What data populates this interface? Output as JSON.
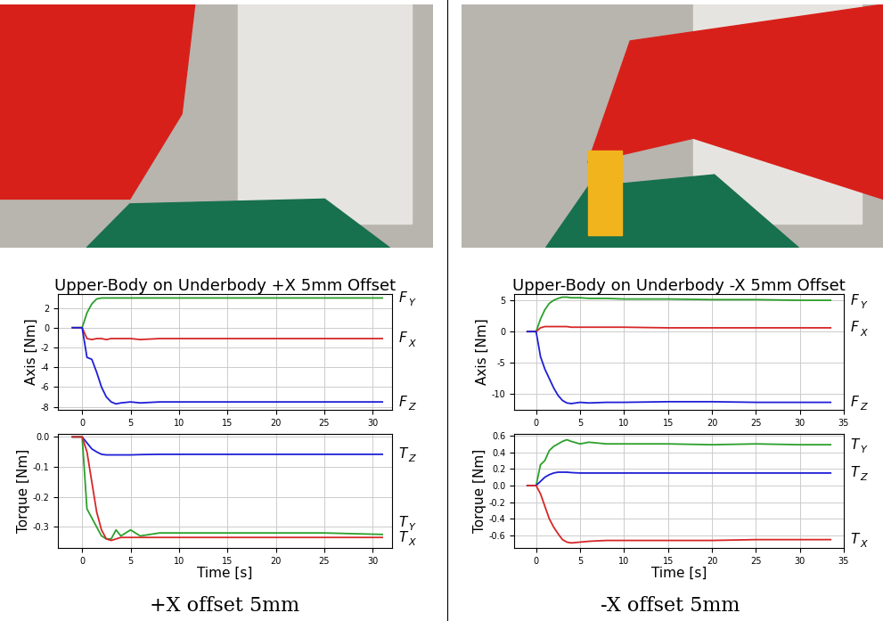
{
  "chart_data": [
    {
      "type": "line",
      "title": "Upper-Body on Underbody +X 5mm Offset",
      "y_label": "Axis [Nm]",
      "grid": true,
      "x": [
        -1,
        0,
        0.5,
        1,
        1.5,
        2,
        2.5,
        3,
        3.5,
        4,
        5,
        6,
        8,
        10,
        15,
        20,
        25,
        31
      ],
      "xlim": [
        -2.5,
        32
      ],
      "xticks": [
        0,
        5,
        10,
        15,
        20,
        25,
        30
      ],
      "ylim": [
        -8.3,
        3.4
      ],
      "yticks": [
        -8,
        -6,
        -4,
        -2,
        0,
        2
      ],
      "series": [
        {
          "name": "FY",
          "color": "#2ca02c",
          "values": [
            0,
            0,
            1.5,
            2.4,
            2.9,
            3.0,
            3.0,
            3.0,
            3.0,
            3.0,
            3.0,
            3.0,
            3.0,
            3.0,
            3.0,
            3.0,
            3.0,
            3.0
          ]
        },
        {
          "name": "FX",
          "color": "#d62728",
          "values": [
            0,
            0,
            -1.1,
            -1.2,
            -1.1,
            -1.1,
            -1.2,
            -1.1,
            -1.1,
            -1.1,
            -1.1,
            -1.2,
            -1.1,
            -1.1,
            -1.1,
            -1.1,
            -1.1,
            -1.1
          ]
        },
        {
          "name": "FZ",
          "color": "#1f1fd6",
          "values": [
            0,
            0,
            -3.0,
            -3.2,
            -4.5,
            -6.0,
            -7.0,
            -7.5,
            -7.7,
            -7.6,
            -7.5,
            -7.6,
            -7.5,
            -7.5,
            -7.5,
            -7.5,
            -7.5,
            -7.5
          ]
        }
      ]
    },
    {
      "type": "line",
      "x_label": "Time [s]",
      "y_label": "Torque [Nm]",
      "grid": true,
      "x": [
        -1,
        0,
        0.5,
        1,
        1.5,
        2,
        2.5,
        3,
        3.5,
        4,
        5,
        6,
        8,
        10,
        15,
        20,
        25,
        31
      ],
      "xlim": [
        -2.5,
        32
      ],
      "xticks": [
        0,
        5,
        10,
        15,
        20,
        25,
        30
      ],
      "ylim": [
        -0.37,
        0.01
      ],
      "yticks": [
        0.0,
        -0.1,
        -0.2,
        -0.3
      ],
      "series": [
        {
          "name": "TZ",
          "color": "#1f1fd6",
          "values": [
            0,
            0,
            -0.02,
            -0.04,
            -0.05,
            -0.058,
            -0.06,
            -0.06,
            -0.06,
            -0.06,
            -0.06,
            -0.059,
            -0.058,
            -0.058,
            -0.058,
            -0.058,
            -0.058,
            -0.058
          ]
        },
        {
          "name": "TY",
          "color": "#2ca02c",
          "values": [
            0,
            0,
            -0.24,
            -0.27,
            -0.3,
            -0.33,
            -0.34,
            -0.34,
            -0.31,
            -0.33,
            -0.31,
            -0.33,
            -0.32,
            -0.32,
            -0.32,
            -0.32,
            -0.32,
            -0.325
          ]
        },
        {
          "name": "TX",
          "color": "#d62728",
          "values": [
            0,
            0,
            -0.05,
            -0.15,
            -0.25,
            -0.31,
            -0.34,
            -0.345,
            -0.34,
            -0.335,
            -0.335,
            -0.335,
            -0.335,
            -0.335,
            -0.335,
            -0.335,
            -0.335,
            -0.335
          ]
        }
      ]
    },
    {
      "type": "line",
      "title": "Upper-Body on Underbody -X 5mm Offset",
      "y_label": "Axis [Nm]",
      "grid": true,
      "x": [
        -1,
        0,
        0.5,
        1,
        1.5,
        2,
        2.5,
        3,
        3.5,
        4,
        5,
        6,
        8,
        10,
        15,
        20,
        25,
        30,
        33.5
      ],
      "xlim": [
        -2.5,
        35
      ],
      "xticks": [
        0,
        5,
        10,
        15,
        20,
        25,
        30,
        35
      ],
      "ylim": [
        -12.5,
        6
      ],
      "yticks": [
        -10,
        -5,
        0,
        5
      ],
      "series": [
        {
          "name": "FY",
          "color": "#2ca02c",
          "values": [
            0,
            0,
            2.0,
            3.5,
            4.5,
            5.0,
            5.3,
            5.5,
            5.5,
            5.4,
            5.4,
            5.3,
            5.3,
            5.2,
            5.2,
            5.1,
            5.1,
            5.0,
            5.0
          ]
        },
        {
          "name": "FX",
          "color": "#d62728",
          "values": [
            0,
            0,
            0.6,
            0.8,
            0.8,
            0.8,
            0.8,
            0.8,
            0.8,
            0.7,
            0.7,
            0.7,
            0.7,
            0.7,
            0.6,
            0.6,
            0.6,
            0.6,
            0.6
          ]
        },
        {
          "name": "FZ",
          "color": "#1f1fd6",
          "values": [
            0,
            0,
            -4.0,
            -6.0,
            -7.5,
            -9.0,
            -10.2,
            -11.0,
            -11.4,
            -11.5,
            -11.3,
            -11.4,
            -11.3,
            -11.3,
            -11.2,
            -11.2,
            -11.3,
            -11.3,
            -11.3
          ]
        }
      ]
    },
    {
      "type": "line",
      "x_label": "Time [s]",
      "y_label": "Torque [Nm]",
      "grid": true,
      "x": [
        -1,
        0,
        0.5,
        1,
        1.5,
        2,
        2.5,
        3,
        3.5,
        4,
        5,
        6,
        8,
        10,
        15,
        20,
        25,
        30,
        33.5
      ],
      "xlim": [
        -2.5,
        35
      ],
      "xticks": [
        0,
        5,
        10,
        15,
        20,
        25,
        30,
        35
      ],
      "ylim": [
        -0.75,
        0.62
      ],
      "yticks": [
        -0.6,
        -0.4,
        -0.2,
        0.0,
        0.2,
        0.4,
        0.6
      ],
      "series": [
        {
          "name": "TY",
          "color": "#2ca02c",
          "values": [
            0,
            0,
            0.25,
            0.3,
            0.42,
            0.47,
            0.5,
            0.53,
            0.55,
            0.53,
            0.5,
            0.52,
            0.5,
            0.5,
            0.5,
            0.49,
            0.5,
            0.49,
            0.49
          ]
        },
        {
          "name": "TZ",
          "color": "#1f1fd6",
          "values": [
            0,
            0,
            0.05,
            0.1,
            0.13,
            0.15,
            0.16,
            0.16,
            0.16,
            0.155,
            0.15,
            0.15,
            0.15,
            0.15,
            0.15,
            0.15,
            0.15,
            0.15,
            0.15
          ]
        },
        {
          "name": "TX",
          "color": "#d62728",
          "values": [
            0,
            0,
            -0.1,
            -0.25,
            -0.4,
            -0.5,
            -0.58,
            -0.65,
            -0.68,
            -0.69,
            -0.68,
            -0.67,
            -0.66,
            -0.66,
            -0.66,
            -0.66,
            -0.65,
            -0.65,
            -0.65
          ]
        }
      ]
    }
  ],
  "captions": [
    "+X offset 5mm",
    "-X offset 5mm"
  ]
}
